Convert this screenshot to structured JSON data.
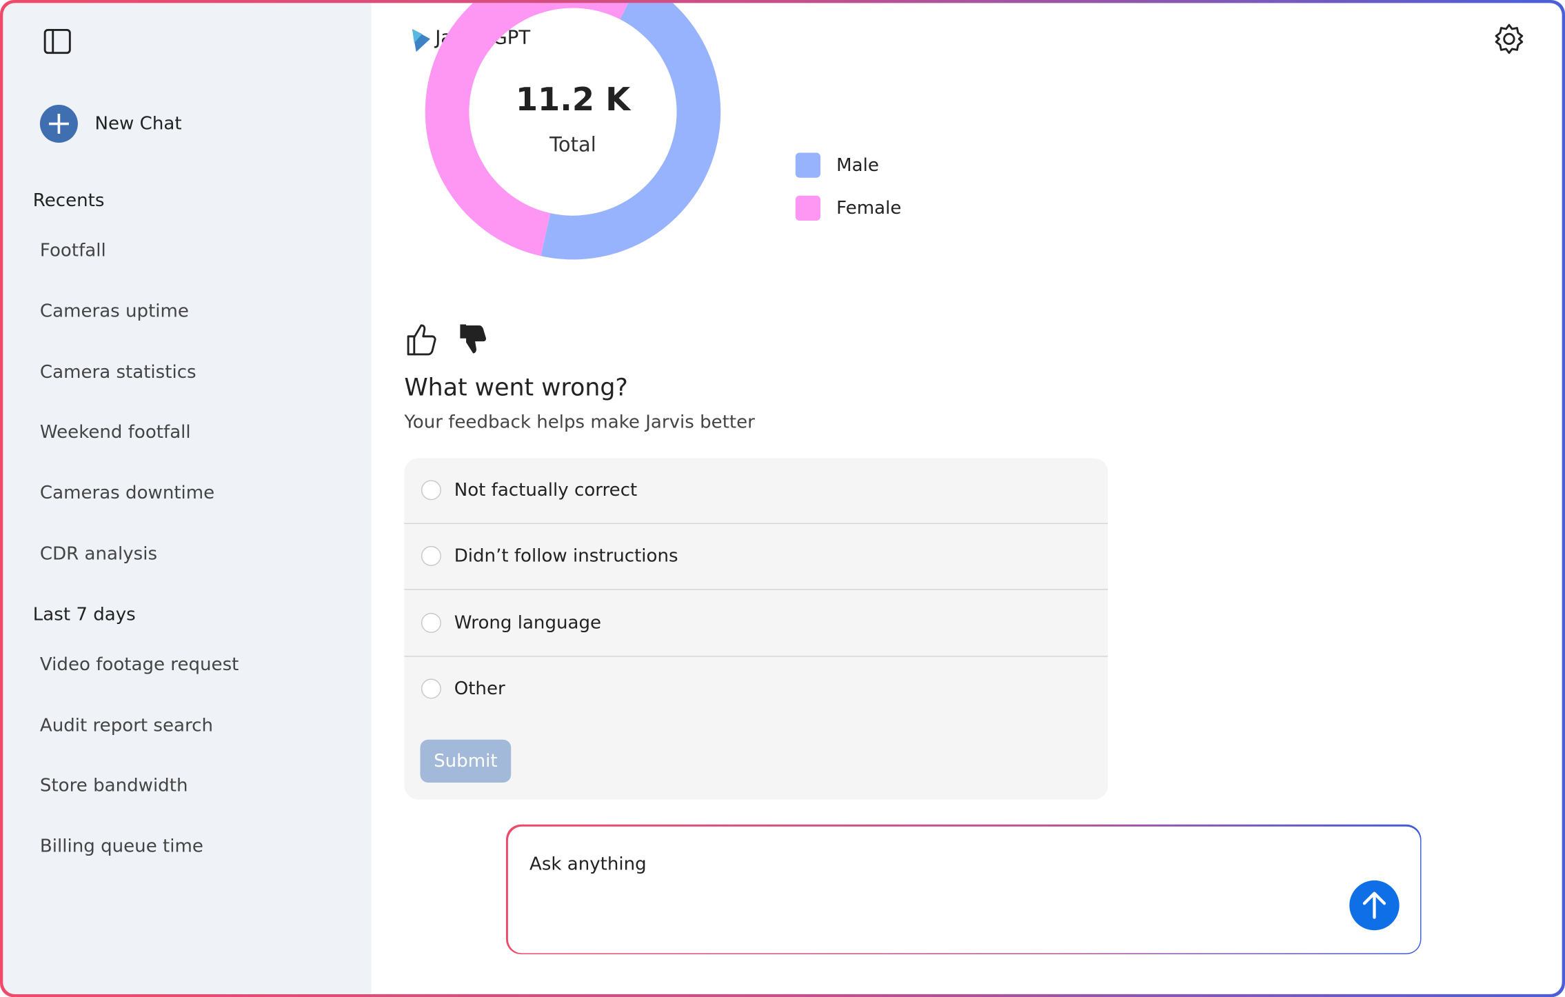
{
  "header": {
    "title": "Jarvis GPT"
  },
  "sidebar": {
    "new_chat": "New Chat",
    "recents_title": "Recents",
    "recents": [
      "Footfall",
      "Cameras uptime",
      "Camera statistics",
      "Weekend footfall",
      "Cameras downtime",
      "CDR analysis"
    ],
    "last7_title": "Last 7 days",
    "last7": [
      "Video footage request",
      "Audit report search",
      "Store bandwidth",
      "Billing queue time"
    ]
  },
  "chart_data": {
    "type": "pie",
    "donut": true,
    "categories": [
      "Male",
      "Female"
    ],
    "values": [
      5150,
      6050
    ],
    "colors": [
      "#97b3fd",
      "#fd97f3"
    ],
    "center_value_label": "11.2 K",
    "center_label": "Total",
    "legend": "right"
  },
  "feedback": {
    "title": "What went wrong?",
    "subtitle": "Your feedback helps make Jarvis better",
    "options": [
      "Not factually correct",
      "Didn’t follow instructions",
      "Wrong language",
      "Other"
    ],
    "submit": "Submit"
  },
  "input": {
    "placeholder": "Ask anything"
  }
}
